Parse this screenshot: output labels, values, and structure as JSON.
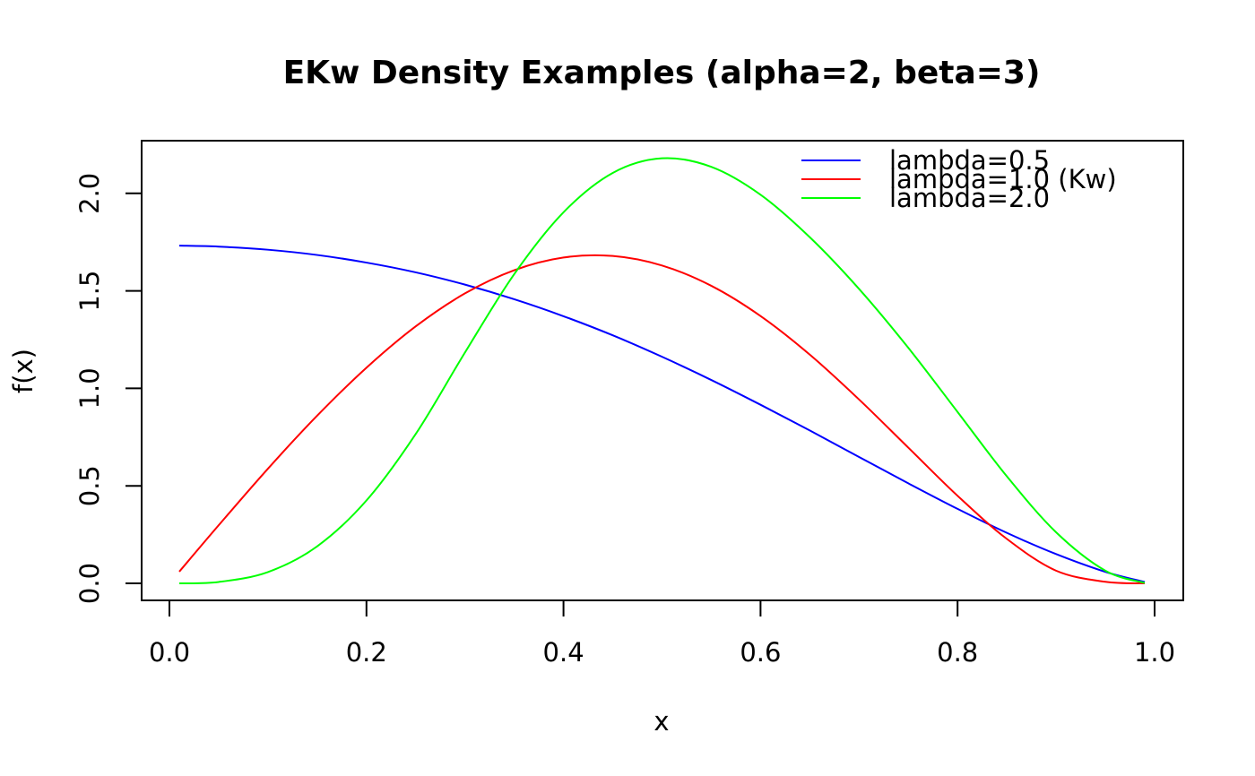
{
  "chart_data": {
    "type": "line",
    "title": "EKw Density Examples (alpha=2, beta=3)",
    "xlabel": "x",
    "ylabel": "f(x)",
    "xlim": [
      0.0,
      1.0
    ],
    "ylim": [
      0.0,
      2.2
    ],
    "x_ticks": [
      "0.0",
      "0.2",
      "0.4",
      "0.6",
      "0.8",
      "1.0"
    ],
    "y_ticks": [
      "0.0",
      "0.5",
      "1.0",
      "1.5",
      "2.0"
    ],
    "grid": false,
    "legend_position": "top-right",
    "x": [
      0.01,
      0.05,
      0.1,
      0.15,
      0.2,
      0.25,
      0.3,
      0.35,
      0.4,
      0.45,
      0.5,
      0.55,
      0.6,
      0.65,
      0.7,
      0.75,
      0.8,
      0.85,
      0.9,
      0.95,
      0.99
    ],
    "series": [
      {
        "name": "lambda=0.5",
        "color": "#0000ff",
        "values": [
          1.732,
          1.727,
          1.711,
          1.684,
          1.645,
          1.595,
          1.532,
          1.457,
          1.37,
          1.272,
          1.162,
          1.043,
          0.916,
          0.784,
          0.648,
          0.513,
          0.382,
          0.259,
          0.15,
          0.059,
          0.007
        ]
      },
      {
        "name": "lambda=1.0 (Kw)",
        "color": "#ff0000",
        "values": [
          0.06,
          0.298,
          0.588,
          0.86,
          1.106,
          1.318,
          1.487,
          1.606,
          1.671,
          1.679,
          1.63,
          1.526,
          1.371,
          1.173,
          0.943,
          0.696,
          0.449,
          0.228,
          0.065,
          0.008,
          0.0
        ]
      },
      {
        "name": "lambda=2.0",
        "color": "#00ff00",
        "values": [
          0.0,
          0.007,
          0.058,
          0.19,
          0.425,
          0.766,
          1.184,
          1.586,
          1.903,
          2.105,
          2.18,
          2.136,
          1.993,
          1.775,
          1.51,
          1.208,
          0.879,
          0.549,
          0.262,
          0.065,
          0.002
        ]
      }
    ]
  }
}
